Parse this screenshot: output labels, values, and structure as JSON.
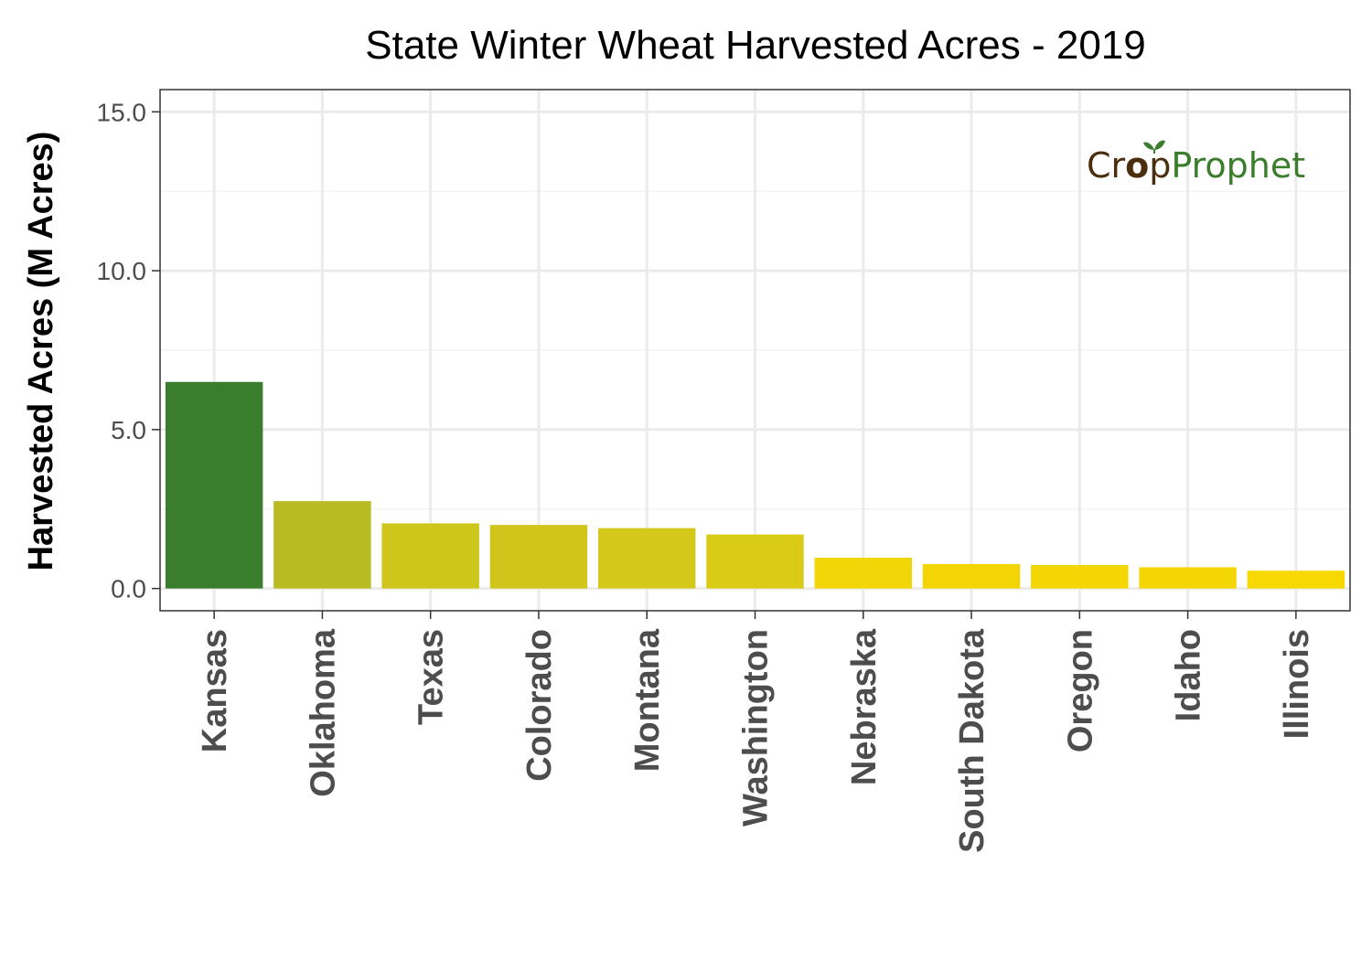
{
  "chart_data": {
    "type": "bar",
    "title": "State Winter Wheat Harvested Acres - 2019",
    "xlabel": "",
    "ylabel": "Harvested Acres (M Acres)",
    "ylim": [
      -0.7,
      15.7
    ],
    "yticks": [
      0,
      5,
      10,
      15
    ],
    "ytick_labels": [
      "0.0",
      "5.0",
      "10.0",
      "15.0"
    ],
    "grid": true,
    "legend": "none",
    "categories": [
      "Kansas",
      "Oklahoma",
      "Texas",
      "Colorado",
      "Montana",
      "Washington",
      "Nebraska",
      "South Dakota",
      "Oregon",
      "Idaho",
      "Illinois"
    ],
    "values": [
      6.5,
      2.75,
      2.05,
      2.0,
      1.9,
      1.7,
      0.97,
      0.77,
      0.74,
      0.67,
      0.56
    ],
    "bar_colors": [
      "#3a7d2c",
      "#b9bb23",
      "#cfc61c",
      "#d0c61b",
      "#d4c81a",
      "#dacb17",
      "#f1d507",
      "#f3d505",
      "#f4d605",
      "#f4d604",
      "#f7d800"
    ]
  },
  "logo": {
    "part1": "Cr",
    "part2": "p",
    "part3": "Prophet",
    "color_dark": "#4a2e0e",
    "color_green": "#3a7d2c"
  },
  "theme": {
    "panel_border": "#333333",
    "grid_major": "#ebebeb",
    "grid_minor": "#f3f3f3",
    "tick_color": "#333333"
  }
}
